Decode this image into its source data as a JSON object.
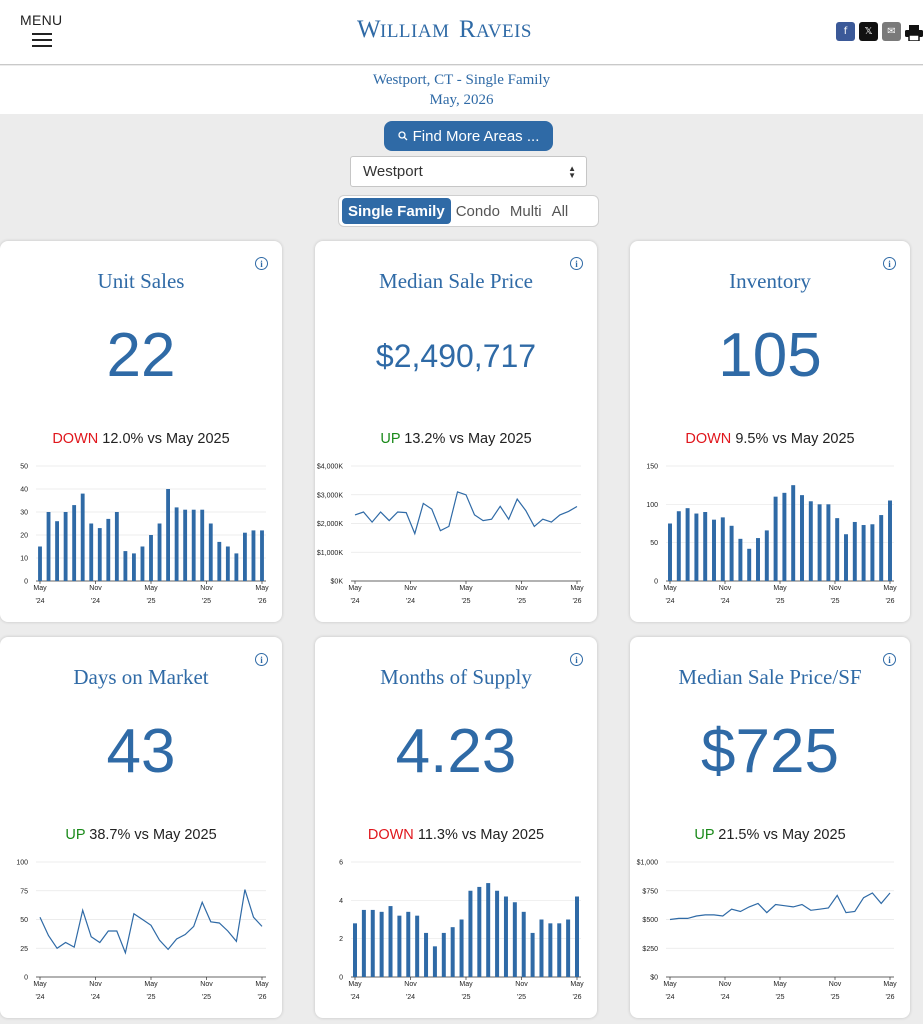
{
  "header": {
    "menu_label": "MENU",
    "logo": "William Raveis",
    "social": {
      "facebook": "f",
      "x": "𝕏",
      "email": "✉"
    }
  },
  "subheader": {
    "line1": "Westport, CT - Single Family",
    "line2": "May, 2026"
  },
  "find_button": "Find More Areas ...",
  "area_select": {
    "value": "Westport"
  },
  "property_types": [
    "Single Family",
    "Condo",
    "Multi",
    "All"
  ],
  "active_type": "Single Family",
  "x_ticks": [
    {
      "i": 0,
      "m": "May",
      "y": "'24"
    },
    {
      "i": 6,
      "m": "Nov",
      "y": "'24"
    },
    {
      "i": 12,
      "m": "May",
      "y": "'25"
    },
    {
      "i": 18,
      "m": "Nov",
      "y": "'25"
    },
    {
      "i": 24,
      "m": "May",
      "y": "'26"
    }
  ],
  "cards": [
    {
      "title": "Unit Sales",
      "value": "22",
      "direction": "DOWN",
      "percent": "12.0%",
      "comparison": "vs May 2025",
      "chart_data": {
        "type": "bar",
        "ylim": [
          0,
          50
        ],
        "yticks": [
          "0",
          "10",
          "20",
          "30",
          "40",
          "50"
        ],
        "values": [
          15,
          30,
          26,
          30,
          33,
          38,
          25,
          23,
          27,
          30,
          13,
          12,
          15,
          20,
          25,
          40,
          32,
          31,
          31,
          31,
          25,
          17,
          15,
          12,
          21,
          22,
          22
        ]
      }
    },
    {
      "title": "Median Sale Price",
      "value": "$2,490,717",
      "direction": "UP",
      "percent": "13.2%",
      "comparison": "vs May 2025",
      "chart_data": {
        "type": "line",
        "ylim": [
          0,
          4000
        ],
        "yticks": [
          "$0K",
          "$1,000K",
          "$2,000K",
          "$3,000K",
          "$4,000K"
        ],
        "values": [
          2300,
          2400,
          2050,
          2400,
          2100,
          2400,
          2380,
          1650,
          2700,
          2500,
          1750,
          1900,
          3100,
          3000,
          2300,
          2100,
          2150,
          2600,
          2150,
          2850,
          2450,
          1900,
          2150,
          2050,
          2300,
          2420,
          2590
        ]
      }
    },
    {
      "title": "Inventory",
      "value": "105",
      "direction": "DOWN",
      "percent": "9.5%",
      "comparison": "vs May 2025",
      "chart_data": {
        "type": "bar",
        "ylim": [
          0,
          150
        ],
        "yticks": [
          "0",
          "50",
          "100",
          "150"
        ],
        "values": [
          75,
          91,
          95,
          88,
          90,
          80,
          83,
          72,
          55,
          42,
          56,
          66,
          110,
          115,
          125,
          112,
          104,
          100,
          100,
          82,
          61,
          77,
          73,
          74,
          86,
          105
        ]
      }
    },
    {
      "title": "Days on Market",
      "value": "43",
      "direction": "UP",
      "percent": "38.7%",
      "comparison": "vs May 2025",
      "chart_data": {
        "type": "line",
        "ylim": [
          0,
          100
        ],
        "yticks": [
          "0",
          "25",
          "50",
          "75",
          "100"
        ],
        "values": [
          52,
          36,
          25,
          30,
          26,
          58,
          35,
          30,
          40,
          40,
          21,
          55,
          50,
          45,
          32,
          24,
          33,
          37,
          44,
          65,
          48,
          47,
          40,
          31,
          76,
          52,
          44
        ]
      }
    },
    {
      "title": "Months of Supply",
      "value": "4.23",
      "direction": "DOWN",
      "percent": "11.3%",
      "comparison": "vs May 2025",
      "chart_data": {
        "type": "bar",
        "ylim": [
          0,
          6
        ],
        "yticks": [
          "0",
          "2",
          "4",
          "6"
        ],
        "values": [
          2.8,
          3.5,
          3.5,
          3.4,
          3.7,
          3.2,
          3.4,
          3.2,
          2.3,
          1.6,
          2.3,
          2.6,
          3.0,
          4.5,
          4.7,
          4.9,
          4.5,
          4.2,
          3.9,
          3.4,
          2.3,
          3.0,
          2.8,
          2.8,
          3.0,
          4.2
        ]
      }
    },
    {
      "title": "Median Sale Price/SF",
      "value": "$725",
      "direction": "UP",
      "percent": "21.5%",
      "comparison": "vs May 2025",
      "chart_data": {
        "type": "line",
        "ylim": [
          0,
          1000
        ],
        "yticks": [
          "$0",
          "$250",
          "$500",
          "$750",
          "$1,000"
        ],
        "values": [
          500,
          510,
          510,
          530,
          540,
          540,
          530,
          590,
          570,
          610,
          640,
          560,
          630,
          620,
          610,
          630,
          580,
          590,
          600,
          710,
          560,
          570,
          690,
          730,
          640,
          730
        ]
      }
    }
  ]
}
